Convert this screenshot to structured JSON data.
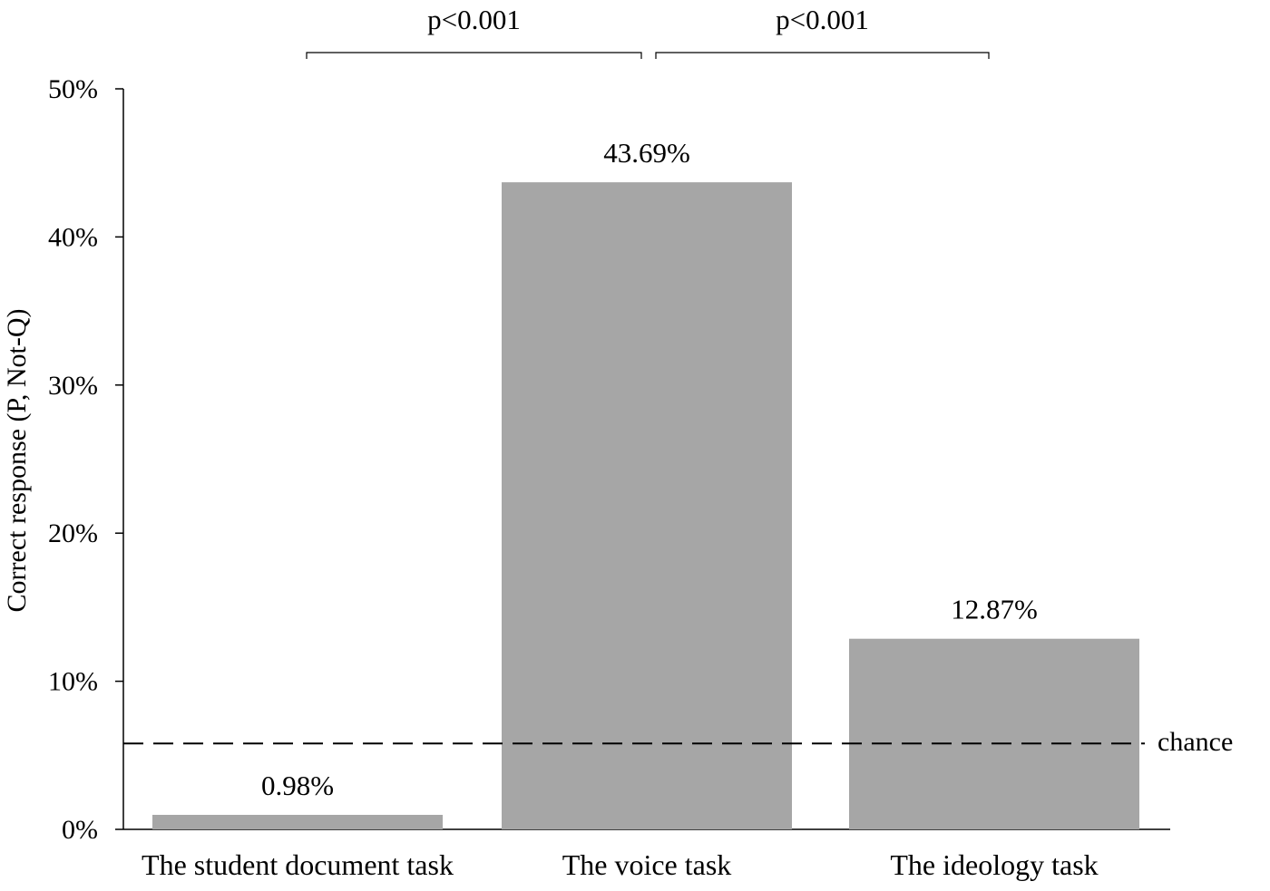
{
  "chart_data": {
    "type": "bar",
    "categories": [
      "The student document task",
      "The voice task",
      "The ideology task"
    ],
    "values": [
      0.98,
      43.69,
      12.87
    ],
    "data_labels": [
      "0.98%",
      "43.69%",
      "12.87%"
    ],
    "ylabel": "Correct response (P, Not-Q)",
    "ylim": [
      0,
      50
    ],
    "yticks": [
      0,
      10,
      20,
      30,
      40,
      50
    ],
    "ytick_labels": [
      "0%",
      "10%",
      "20%",
      "30%",
      "40%",
      "50%"
    ],
    "grid": false,
    "legend": "none",
    "bar_color": "#a6a6a6",
    "reference_line": {
      "label": "chance",
      "value": 5.8,
      "style": "dashed"
    },
    "significance": [
      {
        "from": 0,
        "to": 1,
        "label": "p<0.001"
      },
      {
        "from": 1,
        "to": 2,
        "label": "p<0.001"
      }
    ]
  }
}
